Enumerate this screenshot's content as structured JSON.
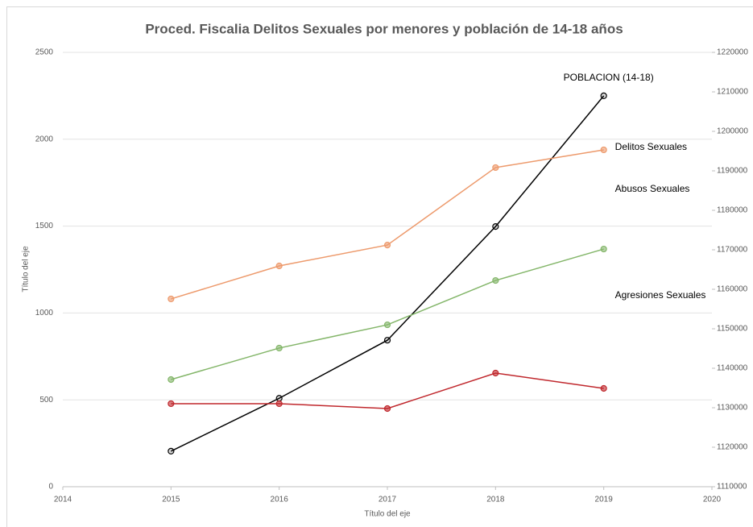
{
  "chart_data": {
    "type": "line",
    "title": "Proced. Fiscalia Delitos Sexuales por menores y población de 14-18 años",
    "x_label": "Título del eje",
    "y_label": "Título del eje",
    "x": [
      2015,
      2016,
      2017,
      2018,
      2019
    ],
    "xlim": [
      2014,
      2020
    ],
    "xticks": [
      2014,
      2015,
      2016,
      2017,
      2018,
      2019,
      2020
    ],
    "ylim": [
      0,
      2500
    ],
    "yticks": [
      0,
      500,
      1000,
      1500,
      2000,
      2500
    ],
    "y2lim": [
      1110000,
      1220000
    ],
    "y2ticks": [
      1110000,
      1120000,
      1130000,
      1140000,
      1150000,
      1160000,
      1170000,
      1180000,
      1190000,
      1200000,
      1210000,
      1220000
    ],
    "grid": true,
    "series": [
      {
        "name": "POBLACION (14-18)",
        "color": "#000000",
        "axis": "y2",
        "values": [
          1119000,
          1132400,
          1147100,
          1175900,
          1209000
        ]
      },
      {
        "name": "Delitos Sexuales",
        "color": "#ed9a6c",
        "values": [
          1081,
          1271,
          1391,
          1837,
          1939
        ]
      },
      {
        "name": "Abusos Sexuales",
        "color": "#84b66a",
        "values": [
          617,
          798,
          932,
          1187,
          1368
        ]
      },
      {
        "name": "Agresiones Sexuales",
        "color": "#c0282d",
        "values": [
          478,
          478,
          450,
          654,
          566
        ]
      }
    ]
  }
}
